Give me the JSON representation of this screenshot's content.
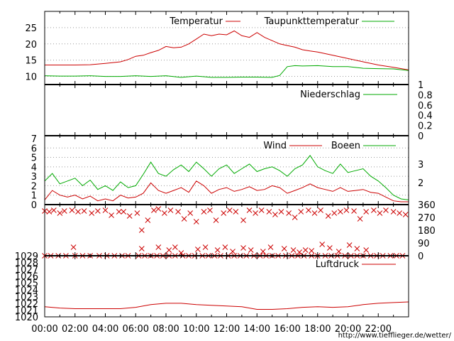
{
  "colors": {
    "primary": "#cc0000",
    "secondary": "#00aa00",
    "grid": "#999999",
    "credit": "#cc0000",
    "frame": "#000000"
  },
  "credit": "http://www.tiefflieger.de/wetter/",
  "chart_data": [
    {
      "type": "line",
      "id": "temperature",
      "ylim": [
        7.5,
        30
      ],
      "yticks": [
        10,
        15,
        20,
        25
      ],
      "grid": "horizontal-dotted",
      "legend_position": "top-right",
      "series": [
        {
          "name": "Temperatur",
          "x": [
            0,
            1,
            2,
            3,
            4,
            5,
            5.5,
            6,
            6.5,
            7,
            7.5,
            8,
            8.5,
            9,
            9.5,
            10,
            10.5,
            11,
            11.5,
            12,
            12.5,
            13,
            13.5,
            14,
            14.5,
            15,
            15.5,
            16,
            16.5,
            17,
            17.5,
            18,
            19,
            20,
            21,
            22,
            23,
            24
          ],
          "values": [
            13.5,
            13.5,
            13.5,
            13.6,
            14,
            14.5,
            15.2,
            16.2,
            16.5,
            17.3,
            18,
            19.2,
            18.8,
            19,
            20,
            21.5,
            23,
            22.5,
            23,
            22.8,
            24,
            22.5,
            22,
            23.5,
            22,
            21,
            20,
            19.5,
            19,
            18.2,
            17.8,
            17.5,
            16.5,
            15.5,
            14.5,
            13.5,
            12.8,
            12
          ]
        },
        {
          "name": "Taupunkttemperatur",
          "x": [
            0,
            1,
            2,
            3,
            4,
            5,
            6,
            7,
            8,
            9,
            10,
            11,
            12,
            13,
            14,
            15,
            15.5,
            16,
            16.5,
            17,
            18,
            19,
            20,
            21,
            22,
            23,
            24
          ],
          "values": [
            10.2,
            10.1,
            10.1,
            10.2,
            10.0,
            10.0,
            10.2,
            10.0,
            10.2,
            9.7,
            10.1,
            9.7,
            9.7,
            9.8,
            9.8,
            9.7,
            10.3,
            13.0,
            13.3,
            13.2,
            13.3,
            13.0,
            13.0,
            12.5,
            12.4,
            12.3,
            11.8
          ]
        }
      ]
    },
    {
      "type": "line",
      "id": "precipitation",
      "ylim": [
        0,
        1
      ],
      "yticks": [
        "0",
        "0.2",
        "0.4",
        "0.6",
        "0.8",
        "1"
      ],
      "y_axis_side": "right",
      "legend_position": "top-right",
      "series": [
        {
          "name": "Niederschlag",
          "x": [
            0,
            24
          ],
          "values": [
            0,
            0
          ]
        }
      ]
    },
    {
      "type": "line",
      "id": "wind",
      "ylim": [
        0,
        7.3
      ],
      "yticks": [
        0,
        1,
        2,
        3,
        4,
        5,
        6,
        7
      ],
      "right_ticks": [
        "2",
        "3"
      ],
      "grid": "horizontal-dotted",
      "legend_position": "top-right",
      "series": [
        {
          "name": "Wind",
          "x": [
            0,
            0.5,
            1,
            1.5,
            2,
            2.5,
            3,
            3.5,
            4,
            4.5,
            5,
            5.5,
            6,
            6.5,
            7,
            7.5,
            8,
            8.5,
            9,
            9.5,
            10,
            10.5,
            11,
            11.5,
            12,
            12.5,
            13,
            13.5,
            14,
            14.5,
            15,
            15.5,
            16,
            16.5,
            17,
            17.5,
            18,
            18.5,
            19,
            19.5,
            20,
            20.5,
            21,
            21.5,
            22,
            22.5,
            23,
            23.5,
            24
          ],
          "values": [
            0.5,
            1.5,
            1.0,
            0.8,
            1.0,
            0.6,
            0.9,
            0.4,
            0.6,
            0.4,
            1.0,
            0.7,
            0.8,
            1.2,
            2.3,
            1.5,
            1.2,
            1.5,
            1.8,
            1.3,
            2.5,
            2.0,
            1.2,
            1.6,
            1.8,
            1.4,
            1.6,
            1.9,
            1.5,
            1.6,
            2.0,
            1.8,
            1.2,
            1.5,
            1.8,
            2.2,
            1.8,
            1.6,
            1.4,
            1.8,
            1.4,
            1.5,
            1.6,
            1.3,
            1.2,
            0.8,
            0.4,
            0.3,
            0.3
          ]
        },
        {
          "name": "Boeen",
          "x": [
            0,
            0.5,
            1,
            1.5,
            2,
            2.5,
            3,
            3.5,
            4,
            4.5,
            5,
            5.5,
            6,
            6.5,
            7,
            7.5,
            8,
            8.5,
            9,
            9.5,
            10,
            10.5,
            11,
            11.5,
            12,
            12.5,
            13,
            13.5,
            14,
            14.5,
            15,
            15.5,
            16,
            16.5,
            17,
            17.5,
            18,
            18.5,
            19,
            19.5,
            20,
            20.5,
            21,
            21.5,
            22,
            22.5,
            23,
            23.5,
            24
          ],
          "values": [
            2.5,
            3.3,
            2.2,
            2.5,
            2.8,
            2.0,
            2.6,
            1.6,
            2.0,
            1.5,
            2.4,
            1.8,
            2.0,
            3.2,
            4.5,
            3.3,
            3.0,
            3.7,
            4.2,
            3.5,
            4.5,
            3.8,
            3.0,
            3.8,
            4.2,
            3.3,
            3.8,
            4.3,
            3.5,
            3.8,
            4.0,
            3.6,
            3.0,
            3.8,
            4.2,
            5.2,
            4.0,
            3.6,
            3.3,
            4.3,
            3.4,
            3.6,
            3.8,
            3.0,
            2.5,
            1.8,
            1.0,
            0.6,
            0.5
          ]
        }
      ]
    },
    {
      "type": "scatter",
      "id": "wind_direction",
      "ylim": [
        0,
        360
      ],
      "right_ticks": [
        "0",
        "90",
        "180",
        "270",
        "360"
      ],
      "series": [
        {
          "name": "",
          "x": [
            0,
            0.3,
            0.6,
            1.0,
            1.3,
            1.8,
            2.2,
            2.6,
            3.1,
            3.5,
            4.0,
            4.4,
            4.9,
            5.2,
            5.6,
            6.1,
            6.4,
            6.8,
            7.2,
            7.5,
            7.9,
            8.3,
            8.8,
            9.2,
            9.6,
            10.0,
            10.5,
            10.9,
            11.3,
            11.8,
            12.2,
            12.6,
            13.1,
            13.5,
            13.9,
            14.3,
            14.8,
            15.2,
            15.6,
            16.1,
            16.5,
            16.9,
            17.4,
            17.8,
            18.2,
            18.7,
            19.1,
            19.5,
            19.9,
            20.4,
            20.8,
            21.2,
            21.7,
            22.1,
            22.5,
            23.0,
            23.4,
            23.8
          ],
          "values": [
            315,
            310,
            320,
            300,
            315,
            320,
            310,
            315,
            300,
            315,
            320,
            285,
            310,
            310,
            280,
            300,
            180,
            250,
            320,
            330,
            300,
            320,
            310,
            260,
            300,
            240,
            310,
            320,
            250,
            300,
            320,
            310,
            250,
            320,
            300,
            320,
            310,
            290,
            310,
            300,
            270,
            310,
            320,
            300,
            320,
            280,
            300,
            310,
            320,
            315,
            260,
            310,
            320,
            300,
            320,
            310,
            300,
            290
          ]
        },
        {
          "name": "",
          "x": [
            0,
            0.4,
            0.9,
            1.4,
            2.0,
            2.5,
            3.0,
            3.6,
            4.1,
            4.6,
            5.1,
            5.5,
            6.2,
            6.6,
            7.0,
            7.4,
            7.8,
            8.2,
            8.6,
            9.1,
            9.5,
            9.9,
            10.4,
            10.8,
            11.2,
            11.6,
            12.1,
            12.5,
            12.9,
            13.3,
            13.8,
            14.2,
            14.6,
            15.0,
            15.4,
            15.9,
            16.3,
            16.7,
            17.1,
            17.6,
            18.0,
            18.5,
            18.9,
            19.3,
            19.8,
            20.2,
            20.6,
            21.0,
            21.5,
            21.9,
            22.3,
            22.8,
            23.2,
            23.6
          ],
          "values": [
            0,
            0,
            0,
            0,
            0,
            0,
            0,
            0,
            0,
            0,
            0,
            0,
            0,
            0,
            0,
            0,
            0,
            0,
            0,
            0,
            0,
            0,
            0,
            0,
            0,
            0,
            0,
            0,
            0,
            0,
            0,
            0,
            0,
            0,
            0,
            0,
            0,
            0,
            0,
            0,
            0,
            0,
            0,
            0,
            0,
            0,
            0,
            0,
            0,
            0,
            0,
            0,
            0,
            0
          ]
        },
        {
          "name": "",
          "x": [
            1.9,
            6.4,
            7.5,
            8.2,
            8.6,
            9.0,
            10.1,
            10.6,
            11.4,
            11.9,
            12.4,
            13.1,
            13.6,
            14.4,
            14.9,
            15.8,
            16.4,
            16.8,
            17.2,
            17.6,
            18.3,
            18.8,
            19.4,
            20.1,
            20.6,
            21.2
          ],
          "values": [
            60,
            50,
            60,
            40,
            60,
            20,
            45,
            60,
            40,
            60,
            30,
            55,
            40,
            30,
            60,
            50,
            40,
            25,
            40,
            35,
            80,
            55,
            30,
            75,
            50,
            40
          ]
        }
      ]
    },
    {
      "type": "line",
      "id": "pressure",
      "ylim": [
        1020,
        1029
      ],
      "yticks": [
        1020,
        1021,
        1022,
        1023,
        1024,
        1025,
        1026,
        1027,
        1028,
        1029
      ],
      "legend_position": "top-right",
      "series": [
        {
          "name": "Luftdruck",
          "x": [
            0,
            1,
            2,
            3,
            4,
            5,
            6,
            7,
            8,
            9,
            10,
            11,
            12,
            13,
            14,
            15,
            16,
            17,
            18,
            19,
            20,
            21,
            22,
            23,
            24
          ],
          "values": [
            1021.5,
            1021.3,
            1021.2,
            1021.2,
            1021.2,
            1021.2,
            1021.4,
            1021.8,
            1022.0,
            1022.0,
            1021.8,
            1021.7,
            1021.6,
            1021.5,
            1021.1,
            1021.1,
            1021.2,
            1021.4,
            1021.5,
            1021.4,
            1021.5,
            1021.8,
            1022.0,
            1022.1,
            1022.2
          ]
        }
      ]
    }
  ],
  "x_axis": {
    "range": [
      0,
      24
    ],
    "ticks": [
      "00:00",
      "02:00",
      "04:00",
      "06:00",
      "08:00",
      "10:00",
      "12:00",
      "14:00",
      "16:00",
      "18:00",
      "20:00",
      "22:00"
    ]
  }
}
